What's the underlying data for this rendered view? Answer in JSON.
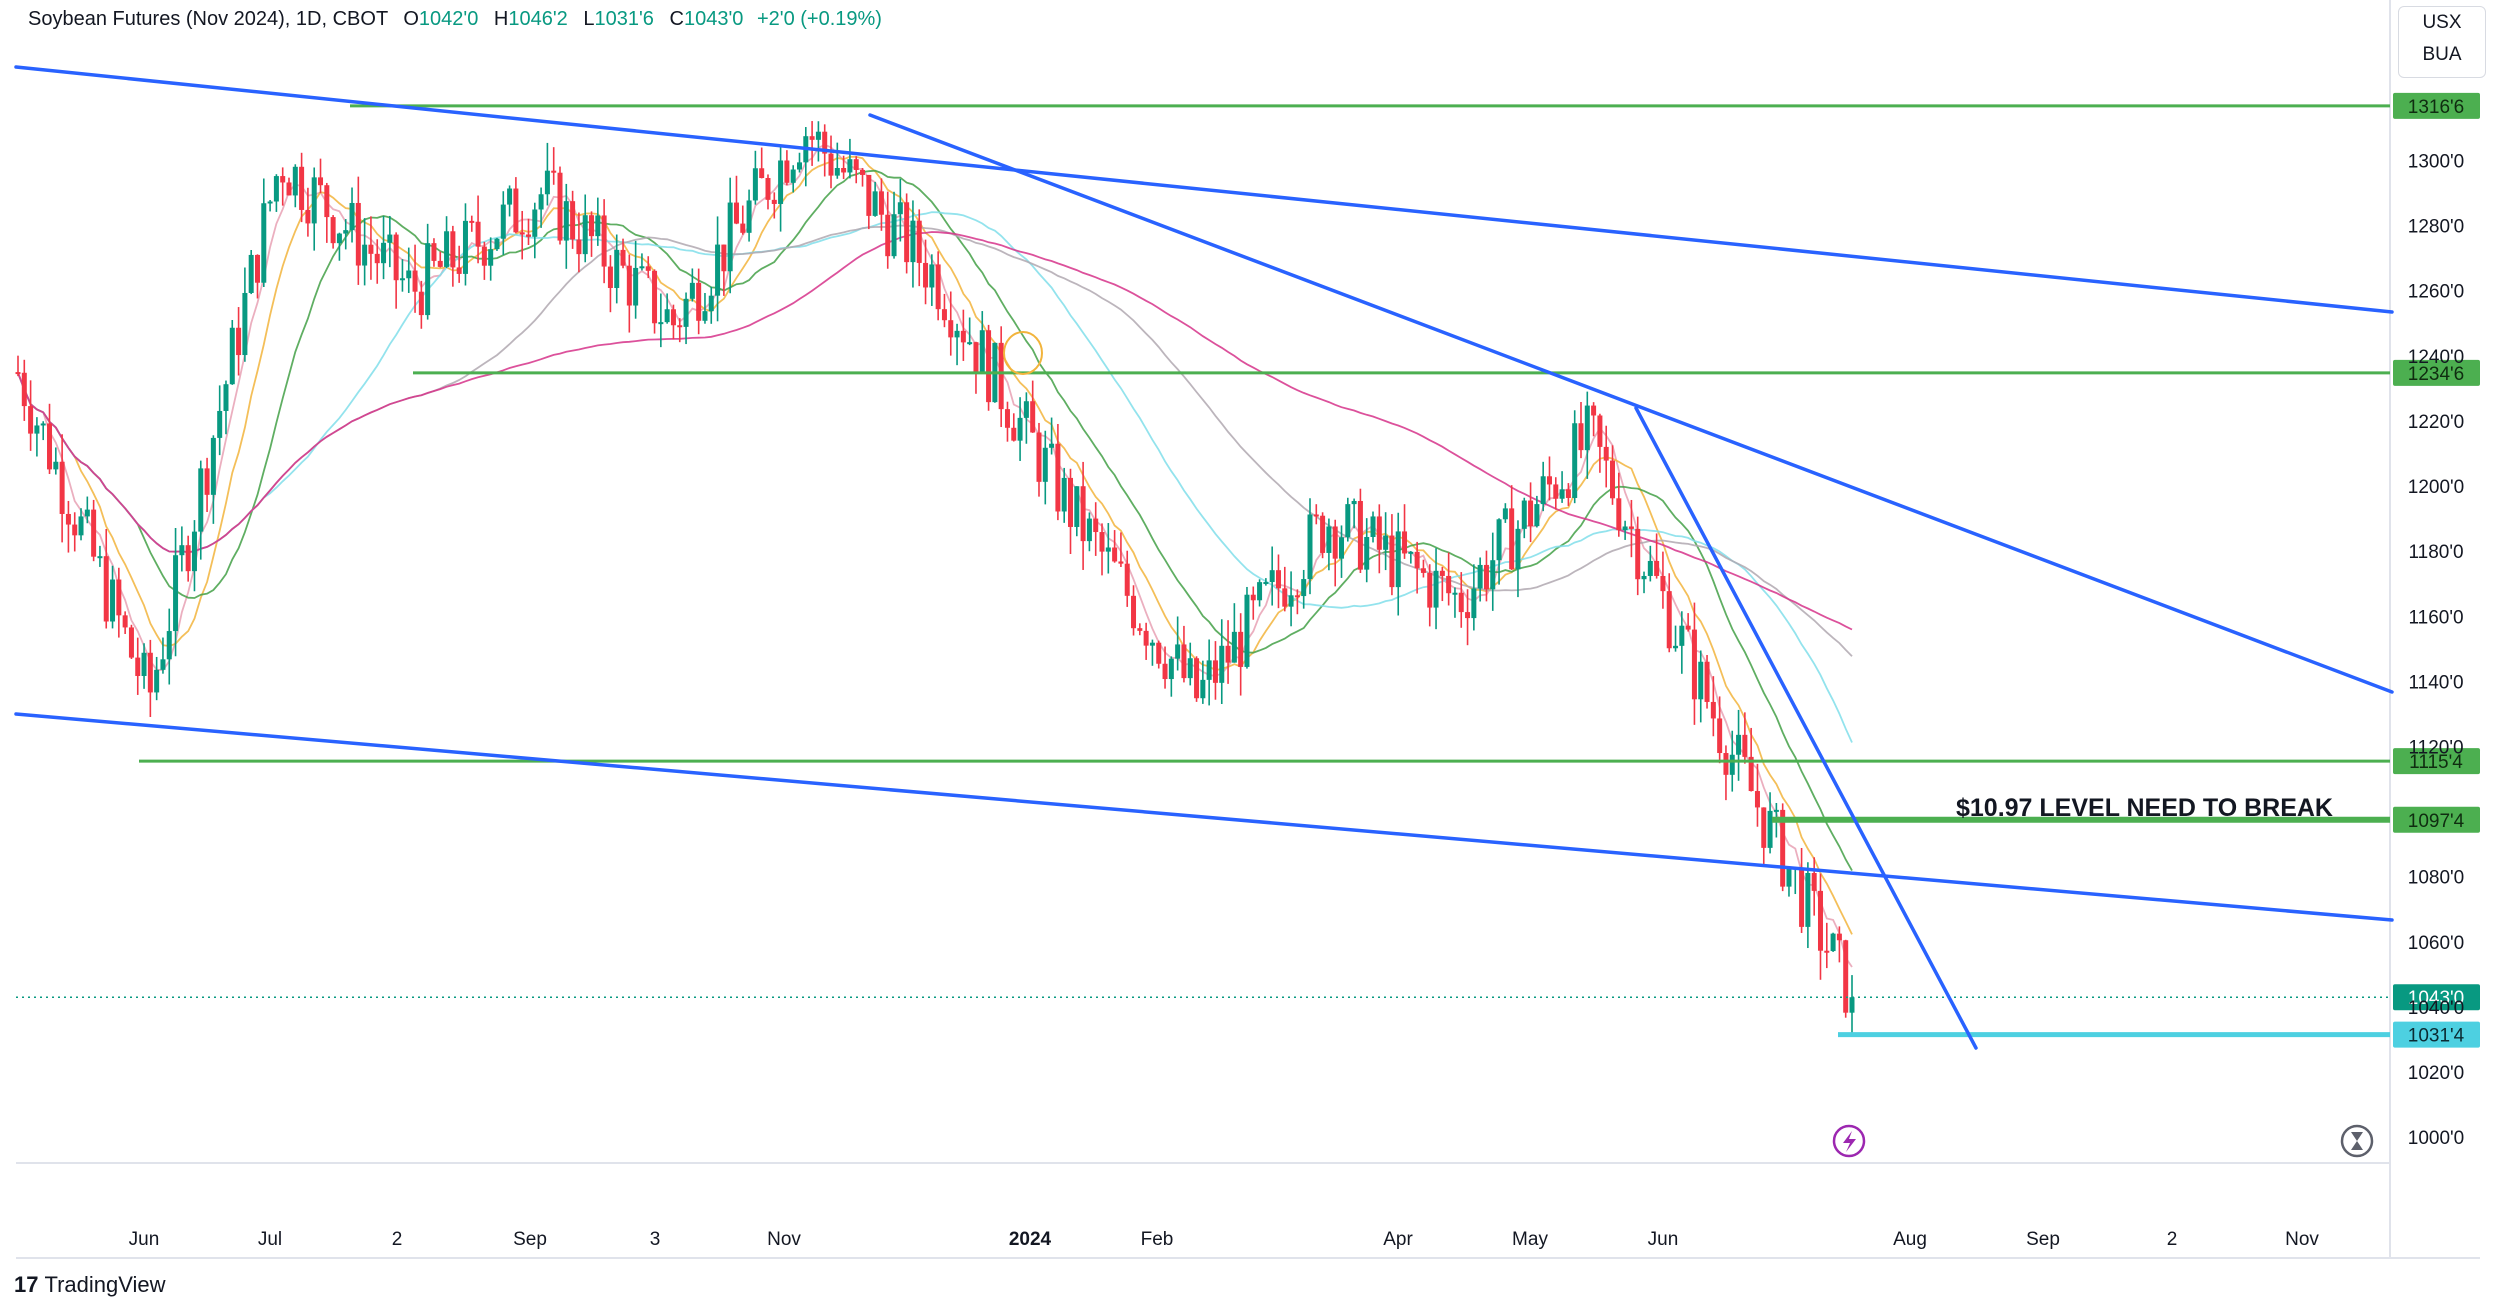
{
  "header": {
    "symbol": "Soybean Futures (Nov 2024), 1D, CBOT",
    "open_label": "O",
    "open": "1042'0",
    "high_label": "H",
    "high": "1046'2",
    "low_label": "L",
    "low": "1031'6",
    "close_label": "C",
    "close": "1043'0",
    "change": "+2'0 (+0.19%)"
  },
  "currency_box": {
    "currency": "USX",
    "unit": "BUA"
  },
  "branding": {
    "name": "TradingView",
    "logo_glyph": "17"
  },
  "colors": {
    "up": "#089981",
    "down": "#f23645",
    "trendline": "#2962ff",
    "level": "#4caf50",
    "support": "#4dd0e1"
  },
  "chart_data": {
    "type": "candlestick",
    "y_axis_ticks": [
      "1316'6",
      "1300'0",
      "1280'0",
      "1260'0",
      "1240'0",
      "1234'6",
      "1220'0",
      "1200'0",
      "1180'0",
      "1160'0",
      "1140'0",
      "1120'0",
      "1115'4",
      "1097'4",
      "1080'0",
      "1060'0",
      "1043'0",
      "1040'0",
      "1031'4",
      "1020'0",
      "1000'0"
    ],
    "ylim": [
      993,
      1337
    ],
    "x_axis_ticks": [
      "Jun",
      "Jul",
      "2",
      "Sep",
      "3",
      "Nov",
      "2024",
      "Feb",
      "Apr",
      "May",
      "Jun",
      "Aug",
      "Sep",
      "2",
      "Nov"
    ],
    "horizontal_levels": [
      {
        "label": "1316'6",
        "value": 1316.75
      },
      {
        "label": "1234'6",
        "value": 1234.75
      },
      {
        "label": "1115'4",
        "value": 1115.5
      },
      {
        "label": "1097'4",
        "value": 1097.5
      },
      {
        "label": "1031'4",
        "value": 1031.5
      }
    ],
    "last_price": {
      "label": "1043'0",
      "value": 1043.0
    },
    "annotation": "$10.97 LEVEL NEED TO BREAK",
    "approx_close_path": [
      {
        "month": "May 2023",
        "value": 1235
      },
      {
        "month": "Jun 2023",
        "value": 1135
      },
      {
        "month": "Jul 2023",
        "value": 1300
      },
      {
        "month": "Aug 2023",
        "value": 1260
      },
      {
        "month": "Sep 2023",
        "value": 1290
      },
      {
        "month": "Oct 2023",
        "value": 1250
      },
      {
        "month": "Nov 2023",
        "value": 1310
      },
      {
        "month": "Dec 2023",
        "value": 1265
      },
      {
        "month": "Jan 2024",
        "value": 1195
      },
      {
        "month": "Feb 2024",
        "value": 1135
      },
      {
        "month": "Mar 2024",
        "value": 1190
      },
      {
        "month": "Apr 2024",
        "value": 1165
      },
      {
        "month": "May 2024",
        "value": 1215
      },
      {
        "month": "Jun 2024",
        "value": 1125
      },
      {
        "month": "Jul 2024",
        "value": 1043
      }
    ]
  }
}
